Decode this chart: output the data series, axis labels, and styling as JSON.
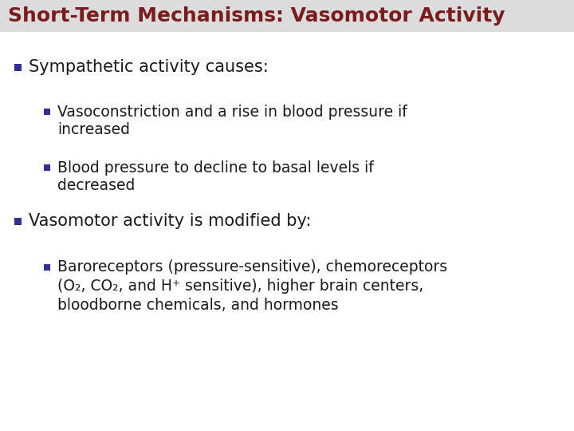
{
  "title": "Short-Term Mechanisms: Vasomotor Activity",
  "title_color": "#7B1C1C",
  "title_fontsize": 18,
  "background_color": "#FFFFFF",
  "header_bg": "#E8E8E8",
  "bullet_color": "#2E3192",
  "text_color": "#1A1A1A",
  "bullet1_text": "Sympathetic activity causes:",
  "bullet1_fontsize": 15,
  "sub_bullet1a_line1": "Vasoconstriction and a rise in blood pressure if",
  "sub_bullet1a_line2": "increased",
  "sub_bullet1b_line1": "Blood pressure to decline to basal levels if",
  "sub_bullet1b_line2": "decreased",
  "sub_fontsize": 13.5,
  "bullet2_text": "Vasomotor activity is modified by:",
  "bullet2_fontsize": 15,
  "sub_bullet2a_line1": "Baroreceptors (pressure-sensitive), chemoreceptors",
  "sub_bullet2a_line2": "(O₂, CO₂, and H⁺ sensitive), higher brain centers,",
  "sub_bullet2a_line3": "bloodborne chemicals, and hormones",
  "sub2_fontsize": 13.5
}
